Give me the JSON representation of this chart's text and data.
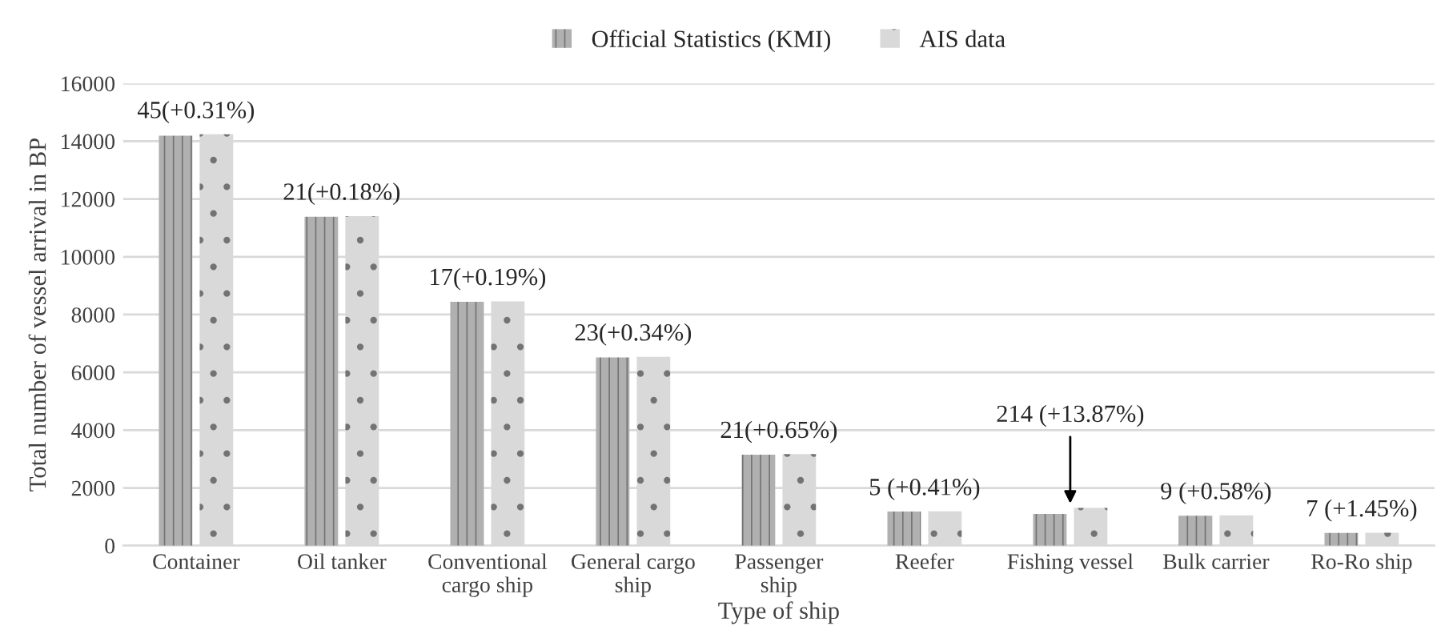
{
  "chart_data": {
    "type": "bar",
    "xlabel": "Type of ship",
    "ylabel": "Total number of vessel arrival in BP",
    "categories": [
      "Container",
      "Oil tanker",
      "Conventional\ncargo ship",
      "General cargo\nship",
      "Passenger\nship",
      "Reefer",
      "Fishing vessel",
      "Bulk carrier",
      "Ro-Ro ship"
    ],
    "series": [
      {
        "name": "Official Statistics (KMI)",
        "color": "#b0b0b0",
        "values": [
          14190,
          11390,
          8440,
          6520,
          3150,
          1180,
          1100,
          1040,
          440
        ]
      },
      {
        "name": "AIS data",
        "color": "#d9d9d9",
        "values": [
          14240,
          11410,
          8460,
          6540,
          3170,
          1190,
          1310,
          1050,
          450
        ]
      }
    ],
    "ylim": [
      0,
      16000
    ],
    "yticks": [
      0,
      2000,
      4000,
      6000,
      8000,
      10000,
      12000,
      14000,
      16000
    ],
    "grid": "y",
    "legend": "top",
    "annotations": [
      {
        "text": "45(+0.31%)",
        "x": "Container",
        "y": 14240
      },
      {
        "text": "21(+0.18%)",
        "x": "Oil tanker",
        "y": 11410
      },
      {
        "text": "17(+0.19%)",
        "x": "Conventional\ncargo ship",
        "y": 8460
      },
      {
        "text": "23(+0.34%)",
        "x": "General cargo\nship",
        "y": 6540
      },
      {
        "text": "21(+0.65%)",
        "x": "Passenger\nship",
        "y": 3170
      },
      {
        "text": "5 (+0.41%)",
        "x": "Reefer",
        "y": 1190
      },
      {
        "text": "214 (+13.87%)",
        "x": "Fishing vessel",
        "y": 1310
      },
      {
        "text": "9 (+0.58%)",
        "x": "Bulk carrier",
        "y": 1050
      },
      {
        "text": "7 (+1.45%)",
        "x": "Ro-Ro ship",
        "y": 450
      }
    ]
  }
}
